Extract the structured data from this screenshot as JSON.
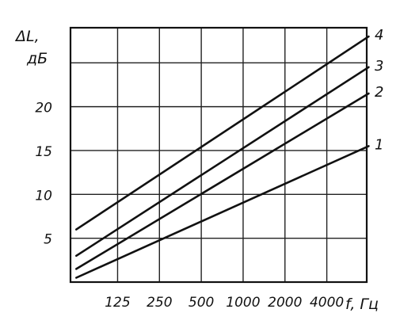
{
  "chart_data": {
    "type": "line",
    "title": "",
    "ylabel_line1": "ΔL,",
    "ylabel_line2": "дБ",
    "xlabel": "f, Гц",
    "x_tick_labels": [
      "125",
      "250",
      "500",
      "1000",
      "2000",
      "4000"
    ],
    "x_log2_range": [
      5.84,
      12.92
    ],
    "y_ticks": [
      5,
      10,
      15,
      20
    ],
    "ylim": [
      0,
      29
    ],
    "grid": true,
    "series": [
      {
        "name": "1",
        "points": [
          [
            63,
            0.5
          ],
          [
            8000,
            15.5
          ]
        ]
      },
      {
        "name": "2",
        "points": [
          [
            63,
            1.5
          ],
          [
            8000,
            21.5
          ]
        ]
      },
      {
        "name": "3",
        "points": [
          [
            63,
            3
          ],
          [
            8000,
            24.5
          ]
        ]
      },
      {
        "name": "4",
        "points": [
          [
            63,
            6
          ],
          [
            8000,
            28
          ]
        ]
      }
    ]
  }
}
